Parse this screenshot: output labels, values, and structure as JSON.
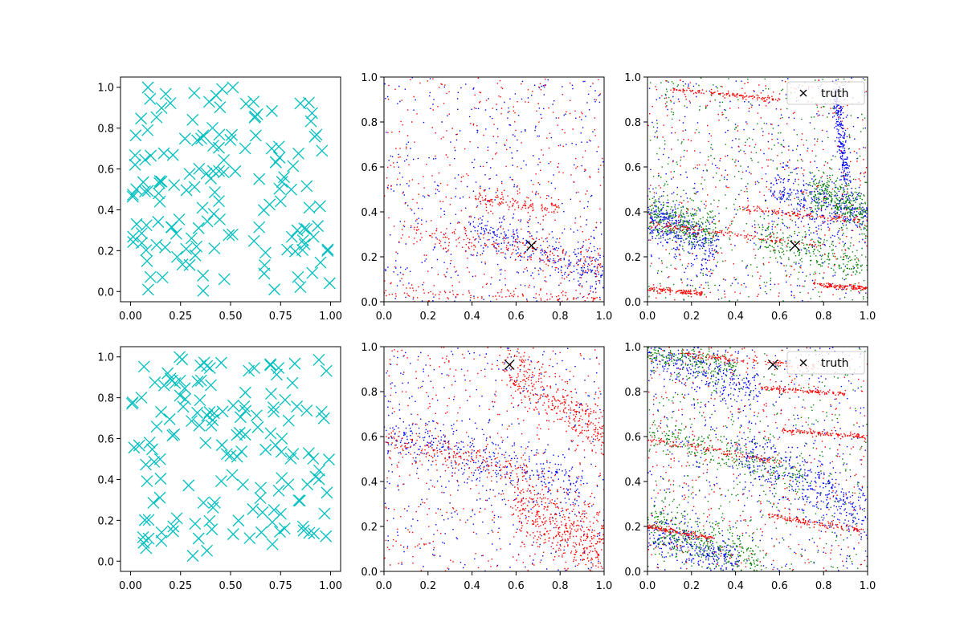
{
  "chart_data": [
    {
      "type": "scatter",
      "panel": "top-left",
      "xlim": [
        -0.05,
        1.05
      ],
      "ylim": [
        -0.05,
        1.05
      ],
      "xticks": [
        "0.00",
        "0.25",
        "0.50",
        "0.75",
        "1.00"
      ],
      "yticks": [
        "0.0",
        "0.2",
        "0.4",
        "0.6",
        "0.8",
        "1.0"
      ],
      "grid": false,
      "series": [
        {
          "color": "#00bfbf",
          "marker": "x-large",
          "count": 150,
          "distribution": "uniform [0,1]x[0,1]"
        }
      ]
    },
    {
      "type": "scatter",
      "panel": "top-middle",
      "xlim": [
        0,
        1
      ],
      "ylim": [
        0,
        1
      ],
      "xticks": [
        "0.0",
        "0.2",
        "0.4",
        "0.6",
        "0.8",
        "1.0"
      ],
      "yticks": [
        "0.0",
        "0.2",
        "0.4",
        "0.6",
        "0.8",
        "1.0"
      ],
      "grid": false,
      "truth": {
        "x": 0.67,
        "y": 0.25
      },
      "series": [
        {
          "color": "#0000ff",
          "marker": "dot",
          "bands": [
            {
              "x0": 0.4,
              "y0": 0.33,
              "x1": 1.0,
              "y1": 0.12,
              "spread": 0.05
            }
          ]
        },
        {
          "color": "#ff0000",
          "marker": "dot",
          "bands": [
            {
              "x0": 0.1,
              "y0": 0.32,
              "x1": 1.0,
              "y1": 0.16,
              "spread": 0.03
            },
            {
              "x0": 0.4,
              "y0": 0.47,
              "x1": 0.8,
              "y1": 0.41,
              "spread": 0.02
            },
            {
              "x0": 0.0,
              "y0": 0.04,
              "x1": 1.0,
              "y1": 0.02,
              "spread": 0.02
            }
          ]
        }
      ]
    },
    {
      "type": "scatter",
      "panel": "top-right",
      "xlim": [
        0,
        1
      ],
      "ylim": [
        0,
        1
      ],
      "xticks": [
        "0.0",
        "0.2",
        "0.4",
        "0.6",
        "0.8",
        "1.0"
      ],
      "yticks": [
        "0.0",
        "0.2",
        "0.4",
        "0.6",
        "0.8",
        "1.0"
      ],
      "grid": false,
      "truth": {
        "x": 0.67,
        "y": 0.25
      },
      "legend": {
        "label": "truth",
        "placement": "upper right"
      },
      "series": [
        {
          "color": "#0000ff",
          "marker": "dot",
          "bands": [
            {
              "x0": 0.0,
              "y0": 0.38,
              "x1": 0.3,
              "y1": 0.25,
              "spread": 0.06
            },
            {
              "x0": 0.55,
              "y0": 0.5,
              "x1": 1.0,
              "y1": 0.38,
              "spread": 0.06
            },
            {
              "x0": 0.85,
              "y0": 0.95,
              "x1": 0.9,
              "y1": 0.55,
              "spread": 0.04
            }
          ]
        },
        {
          "color": "#008000",
          "marker": "dot",
          "bands": [
            {
              "x0": 0.0,
              "y0": 0.4,
              "x1": 0.3,
              "y1": 0.3,
              "spread": 0.05
            },
            {
              "x0": 0.5,
              "y0": 0.3,
              "x1": 1.0,
              "y1": 0.15,
              "spread": 0.04
            },
            {
              "x0": 0.75,
              "y0": 0.5,
              "x1": 1.0,
              "y1": 0.4,
              "spread": 0.05
            }
          ]
        },
        {
          "color": "#ff0000",
          "marker": "dot",
          "bands": [
            {
              "x0": 0.0,
              "y0": 0.35,
              "x1": 0.8,
              "y1": 0.25,
              "spread": 0.008
            },
            {
              "x0": 0.4,
              "y0": 0.42,
              "x1": 1.0,
              "y1": 0.36,
              "spread": 0.008
            },
            {
              "x0": 0.0,
              "y0": 0.06,
              "x1": 0.25,
              "y1": 0.04,
              "spread": 0.006
            },
            {
              "x0": 0.75,
              "y0": 0.08,
              "x1": 1.0,
              "y1": 0.06,
              "spread": 0.006
            },
            {
              "x0": 0.1,
              "y0": 0.95,
              "x1": 0.6,
              "y1": 0.9,
              "spread": 0.006
            }
          ]
        }
      ]
    },
    {
      "type": "scatter",
      "panel": "bottom-left",
      "xlim": [
        -0.05,
        1.05
      ],
      "ylim": [
        -0.05,
        1.05
      ],
      "xticks": [
        "0.00",
        "0.25",
        "0.50",
        "0.75",
        "1.00"
      ],
      "yticks": [
        "0.0",
        "0.2",
        "0.4",
        "0.6",
        "0.8",
        "1.0"
      ],
      "grid": false,
      "series": [
        {
          "color": "#00bfbf",
          "marker": "x-large",
          "count": 150,
          "distribution": "uniform [0,1]x[0,1]"
        }
      ]
    },
    {
      "type": "scatter",
      "panel": "bottom-middle",
      "xlim": [
        0,
        1
      ],
      "ylim": [
        0,
        1
      ],
      "xticks": [
        "0.0",
        "0.2",
        "0.4",
        "0.6",
        "0.8",
        "1.0"
      ],
      "yticks": [
        "0.0",
        "0.2",
        "0.4",
        "0.6",
        "0.8",
        "1.0"
      ],
      "grid": false,
      "truth": {
        "x": 0.57,
        "y": 0.92
      },
      "series": [
        {
          "color": "#0000ff",
          "marker": "dot",
          "bands": [
            {
              "x0": 0.0,
              "y0": 0.61,
              "x1": 0.9,
              "y1": 0.38,
              "spread": 0.06
            }
          ]
        },
        {
          "color": "#ff0000",
          "marker": "dot",
          "bands": [
            {
              "x0": 0.0,
              "y0": 0.6,
              "x1": 0.65,
              "y1": 0.44,
              "spread": 0.03
            },
            {
              "x0": 0.55,
              "y0": 0.92,
              "x1": 1.0,
              "y1": 0.6,
              "spread": 0.06
            },
            {
              "x0": 0.6,
              "y0": 0.3,
              "x1": 1.0,
              "y1": 0.1,
              "spread": 0.08
            }
          ]
        }
      ]
    },
    {
      "type": "scatter",
      "panel": "bottom-right",
      "xlim": [
        0,
        1
      ],
      "ylim": [
        0,
        1
      ],
      "xticks": [
        "0.0",
        "0.2",
        "0.4",
        "0.6",
        "0.8",
        "1.0"
      ],
      "yticks": [
        "0.0",
        "0.2",
        "0.4",
        "0.6",
        "0.8",
        "1.0"
      ],
      "grid": false,
      "truth": {
        "x": 0.57,
        "y": 0.92
      },
      "legend": {
        "label": "truth",
        "placement": "upper right"
      },
      "series": [
        {
          "color": "#0000ff",
          "marker": "dot",
          "bands": [
            {
              "x0": 0.0,
              "y0": 0.98,
              "x1": 0.5,
              "y1": 0.82,
              "spread": 0.05
            },
            {
              "x0": 0.4,
              "y0": 0.55,
              "x1": 1.0,
              "y1": 0.25,
              "spread": 0.07
            },
            {
              "x0": 0.0,
              "y0": 0.18,
              "x1": 0.4,
              "y1": 0.05,
              "spread": 0.05
            }
          ]
        },
        {
          "color": "#008000",
          "marker": "dot",
          "bands": [
            {
              "x0": 0.0,
              "y0": 0.98,
              "x1": 0.4,
              "y1": 0.9,
              "spread": 0.03
            },
            {
              "x0": 0.0,
              "y0": 0.63,
              "x1": 0.7,
              "y1": 0.42,
              "spread": 0.04
            },
            {
              "x0": 0.0,
              "y0": 0.2,
              "x1": 0.5,
              "y1": 0.05,
              "spread": 0.06
            }
          ]
        },
        {
          "color": "#ff0000",
          "marker": "dot",
          "bands": [
            {
              "x0": 0.15,
              "y0": 0.97,
              "x1": 0.75,
              "y1": 0.91,
              "spread": 0.008
            },
            {
              "x0": 0.0,
              "y0": 0.59,
              "x1": 0.6,
              "y1": 0.49,
              "spread": 0.008
            },
            {
              "x0": 0.55,
              "y0": 0.25,
              "x1": 1.0,
              "y1": 0.18,
              "spread": 0.008
            },
            {
              "x0": 0.0,
              "y0": 0.2,
              "x1": 0.3,
              "y1": 0.15,
              "spread": 0.006
            },
            {
              "x0": 0.6,
              "y0": 0.63,
              "x1": 1.0,
              "y1": 0.6,
              "spread": 0.006
            },
            {
              "x0": 0.5,
              "y0": 0.82,
              "x1": 0.9,
              "y1": 0.79,
              "spread": 0.006
            }
          ]
        }
      ]
    }
  ]
}
